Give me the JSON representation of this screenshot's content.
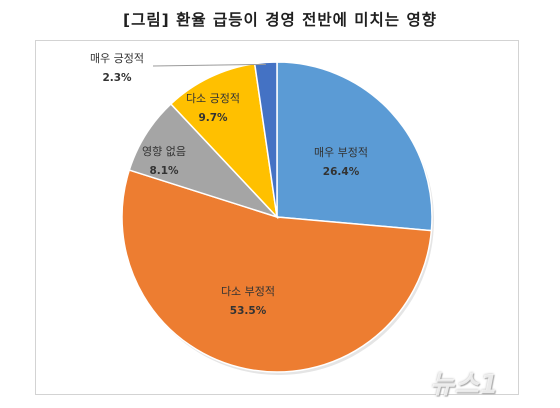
{
  "header": {
    "title": "[그림] 환율 급등이 경영 전반에 미치는 영향"
  },
  "watermark": "뉴스1",
  "chart_data": {
    "type": "pie",
    "title": "[그림] 환율 급등이 경영 전반에 미치는 영향",
    "start_angle_deg": 0,
    "direction": "clockwise",
    "slices": [
      {
        "label": "매우 부정적",
        "value": 26.4,
        "value_label": "26.4%",
        "color": "#5b9bd5"
      },
      {
        "label": "다소 부정적",
        "value": 53.5,
        "value_label": "53.5%",
        "color": "#ed7d31"
      },
      {
        "label": "영향 없음",
        "value": 8.1,
        "value_label": "8.1%",
        "color": "#a5a5a5"
      },
      {
        "label": "다소 긍정적",
        "value": 9.7,
        "value_label": "9.7%",
        "color": "#ffc000"
      },
      {
        "label": "매우 긍정적",
        "value": 2.3,
        "value_label": "2.3%",
        "color": "#4472c4"
      }
    ]
  }
}
